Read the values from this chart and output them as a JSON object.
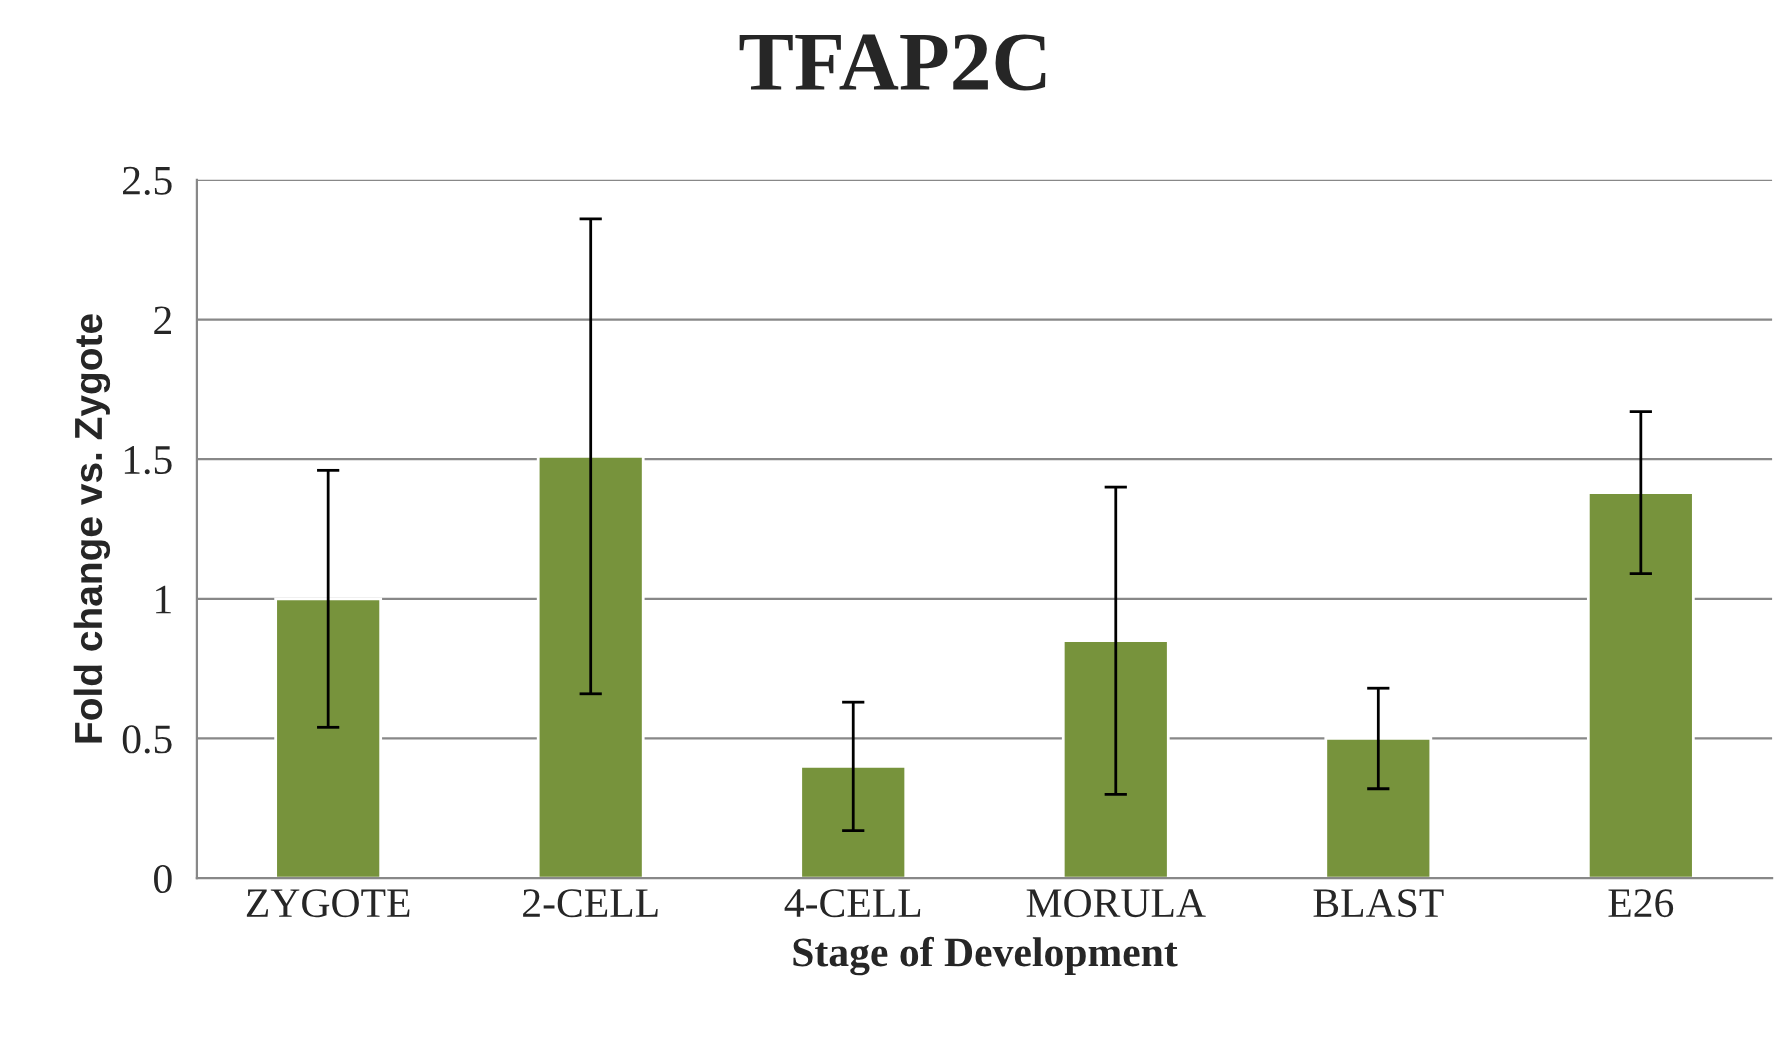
{
  "chart_data": {
    "type": "bar",
    "title": "TFAP2C",
    "xlabel": "Stage of Development",
    "ylabel": "Fold change vs. Zygote",
    "categories": [
      "ZYGOTE",
      "2-CELL",
      "4-CELL",
      "MORULA",
      "BLAST",
      "E26"
    ],
    "values": [
      1.0,
      1.51,
      0.4,
      0.85,
      0.5,
      1.38
    ],
    "errors": [
      0.46,
      0.85,
      0.23,
      0.55,
      0.18,
      0.29
    ],
    "color": "#77933c",
    "ylim": [
      0,
      2.5
    ],
    "yticks": [
      0,
      0.5,
      1,
      1.5,
      2,
      2.5
    ],
    "grid": "y"
  }
}
